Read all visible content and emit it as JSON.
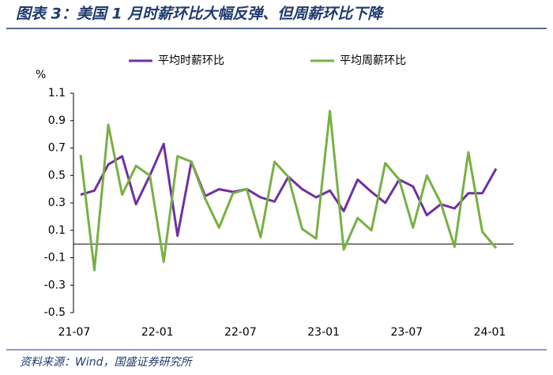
{
  "chart_data": {
    "type": "line",
    "title": "图表 3：美国 1 月时薪环比大幅反弹、但周薪环比下降",
    "y_label": "%",
    "source": "资料来源：Wind，国盛证券研究所",
    "categories": [
      "21-07",
      null,
      null,
      null,
      null,
      null,
      "22-01",
      null,
      null,
      null,
      null,
      null,
      "22-07",
      null,
      null,
      null,
      null,
      null,
      "23-01",
      null,
      null,
      null,
      null,
      null,
      "23-07",
      null,
      null,
      null,
      null,
      null,
      "24-01"
    ],
    "series": [
      {
        "name": "平均时薪环比",
        "color": "#7030a0",
        "values": [
          0.36,
          0.39,
          0.58,
          0.64,
          0.29,
          0.5,
          0.73,
          0.06,
          0.6,
          0.35,
          0.4,
          0.38,
          0.4,
          0.34,
          0.31,
          0.49,
          0.4,
          0.34,
          0.39,
          0.24,
          0.47,
          0.38,
          0.3,
          0.47,
          0.42,
          0.21,
          0.29,
          0.26,
          0.37,
          0.37,
          0.55
        ]
      },
      {
        "name": "平均周薪环比",
        "color": "#77b043",
        "values": [
          0.65,
          -0.19,
          0.87,
          0.36,
          0.57,
          0.5,
          -0.13,
          0.64,
          0.6,
          0.33,
          0.12,
          0.37,
          0.4,
          0.05,
          0.6,
          0.49,
          0.11,
          0.04,
          0.97,
          -0.04,
          0.19,
          0.1,
          0.59,
          0.47,
          0.12,
          0.5,
          0.3,
          -0.02,
          0.67,
          0.09,
          -0.03
        ]
      }
    ],
    "ylim": [
      -0.5,
      1.1
    ],
    "yticks": [
      -0.5,
      -0.3,
      -0.1,
      0.1,
      0.3,
      0.5,
      0.7,
      0.9,
      1.1
    ],
    "grid": false,
    "legend": "top"
  }
}
